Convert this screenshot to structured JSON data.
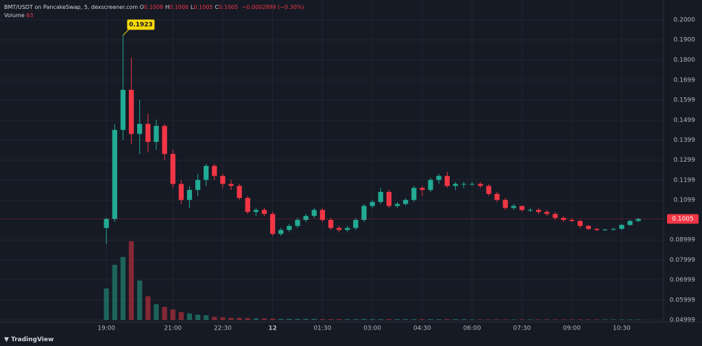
{
  "chart_data": {
    "type": "candlestick",
    "title": "BMT/USDT on PancakeSwap, 5, dexscreener.com",
    "ohlc": [
      {
        "label": "O",
        "value": 0.1008
      },
      {
        "label": "H",
        "value": 0.1006
      },
      {
        "label": "L",
        "value": 0.1005
      },
      {
        "label": "C",
        "value": 0.1005
      }
    ],
    "change": "−0.0002899 (−0.30%)",
    "volume_label": "Volume",
    "volume_value": 63,
    "brand": "TradingView",
    "x": [
      0,
      0.25,
      0.5,
      0.75,
      1,
      1.25,
      1.5,
      1.75,
      2,
      2.25,
      2.5,
      2.75,
      3,
      3.25,
      3.5,
      3.75,
      4,
      4.25,
      4.5,
      4.75,
      5,
      5.25,
      5.5,
      5.75,
      6,
      6.25,
      6.5,
      6.75,
      7,
      7.25,
      7.5,
      7.75,
      8,
      8.25,
      8.5,
      8.75,
      9,
      9.25,
      9.5,
      9.75,
      10,
      10.25,
      10.5,
      10.75,
      11,
      11.25,
      11.5,
      11.75,
      12,
      12.25,
      12.5,
      12.75,
      13,
      13.25,
      13.5,
      13.75,
      14,
      14.25,
      14.5,
      14.75,
      15,
      15.25,
      15.5,
      15.75,
      16
    ],
    "open": [
      0.096,
      0.1005,
      0.145,
      0.165,
      0.143,
      0.148,
      0.139,
      0.147,
      0.133,
      0.118,
      0.11,
      0.115,
      0.12,
      0.127,
      0.122,
      0.118,
      0.117,
      0.111,
      0.104,
      0.105,
      0.103,
      0.093,
      0.095,
      0.097,
      0.1,
      0.102,
      0.105,
      0.1,
      0.096,
      0.095,
      0.096,
      0.1,
      0.107,
      0.109,
      0.114,
      0.107,
      0.108,
      0.11,
      0.116,
      0.115,
      0.12,
      0.122,
      0.117,
      0.118,
      0.118,
      0.118,
      0.117,
      0.113,
      0.11,
      0.106,
      0.107,
      0.105,
      0.105,
      0.104,
      0.103,
      0.101,
      0.1,
      0.0995,
      0.097,
      0.0955,
      0.095,
      0.0952,
      0.0955,
      0.0975,
      0.0995
    ],
    "high": [
      0.101,
      0.148,
      0.1923,
      0.181,
      0.16,
      0.153,
      0.15,
      0.148,
      0.135,
      0.12,
      0.117,
      0.123,
      0.128,
      0.128,
      0.123,
      0.12,
      0.118,
      0.112,
      0.106,
      0.106,
      0.104,
      0.096,
      0.098,
      0.101,
      0.103,
      0.106,
      0.106,
      0.101,
      0.097,
      0.097,
      0.101,
      0.108,
      0.11,
      0.116,
      0.115,
      0.109,
      0.111,
      0.117,
      0.117,
      0.121,
      0.123,
      0.124,
      0.119,
      0.119,
      0.119,
      0.119,
      0.118,
      0.114,
      0.111,
      0.108,
      0.107,
      0.106,
      0.106,
      0.105,
      0.104,
      0.102,
      0.101,
      0.1,
      0.0975,
      0.096,
      0.0955,
      0.096,
      0.098,
      0.1,
      0.101
    ],
    "low": [
      0.088,
      0.099,
      0.14,
      0.138,
      0.133,
      0.134,
      0.135,
      0.13,
      0.116,
      0.108,
      0.106,
      0.112,
      0.117,
      0.12,
      0.116,
      0.115,
      0.11,
      0.103,
      0.102,
      0.102,
      0.092,
      0.092,
      0.094,
      0.096,
      0.099,
      0.101,
      0.099,
      0.095,
      0.094,
      0.094,
      0.095,
      0.099,
      0.106,
      0.108,
      0.106,
      0.106,
      0.107,
      0.109,
      0.112,
      0.114,
      0.118,
      0.116,
      0.115,
      0.116,
      0.117,
      0.116,
      0.112,
      0.109,
      0.105,
      0.105,
      0.104,
      0.104,
      0.103,
      0.102,
      0.1,
      0.099,
      0.099,
      0.096,
      0.095,
      0.0945,
      0.0945,
      0.0945,
      0.095,
      0.097,
      0.099
    ],
    "close": [
      0.1005,
      0.145,
      0.165,
      0.143,
      0.148,
      0.139,
      0.147,
      0.133,
      0.118,
      0.11,
      0.115,
      0.12,
      0.127,
      0.122,
      0.118,
      0.117,
      0.111,
      0.104,
      0.105,
      0.103,
      0.093,
      0.095,
      0.097,
      0.1,
      0.102,
      0.105,
      0.1,
      0.096,
      0.095,
      0.096,
      0.1,
      0.107,
      0.109,
      0.114,
      0.107,
      0.108,
      0.11,
      0.116,
      0.115,
      0.12,
      0.122,
      0.117,
      0.118,
      0.118,
      0.118,
      0.117,
      0.113,
      0.11,
      0.106,
      0.107,
      0.105,
      0.105,
      0.104,
      0.103,
      0.101,
      0.1,
      0.0995,
      0.097,
      0.0955,
      0.095,
      0.0952,
      0.0955,
      0.0975,
      0.0995,
      0.1005
    ],
    "volume": [
      120,
      210,
      240,
      300,
      150,
      90,
      60,
      50,
      40,
      30,
      25,
      20,
      18,
      12,
      10,
      8,
      8,
      7,
      6,
      6,
      5,
      4,
      4,
      4,
      4,
      4,
      3,
      3,
      3,
      3,
      3,
      4,
      3,
      3,
      3,
      3,
      3,
      3,
      3,
      3,
      3,
      3,
      3,
      3,
      2,
      2,
      2,
      2,
      2,
      2,
      2,
      2,
      2,
      2,
      2,
      2,
      2,
      2,
      2,
      2,
      2,
      2,
      2,
      2,
      2
    ],
    "colors": {
      "up": "#22ab94",
      "down": "#f23645"
    },
    "xlim": [
      -3.2,
      16.76
    ],
    "ylim": [
      0.05,
      0.2
    ],
    "volume_ylim": [
      0,
      300
    ],
    "xticks": [
      {
        "value": 0,
        "label": "19:00"
      },
      {
        "value": 2,
        "label": "21:00"
      },
      {
        "value": 3.5,
        "label": "22:30"
      },
      {
        "value": 5,
        "label": "12"
      },
      {
        "value": 6.5,
        "label": "01:30"
      },
      {
        "value": 8,
        "label": "03:00"
      },
      {
        "value": 9.5,
        "label": "04:30"
      },
      {
        "value": 11,
        "label": "06:00"
      },
      {
        "value": 12.5,
        "label": "07:30"
      },
      {
        "value": 14,
        "label": "09:00"
      },
      {
        "value": 15.5,
        "label": "10:30"
      }
    ],
    "yticks": [
      {
        "value": 0.2,
        "label": "0.2000"
      },
      {
        "value": 0.19,
        "label": "0.1900"
      },
      {
        "value": 0.18,
        "label": "0.1800"
      },
      0.1699,
      0.1599,
      0.1499,
      0.1399,
      0.1299,
      0.1199,
      0.1099,
      0.08999,
      0.07999,
      0.06999,
      0.05999,
      0.04999
    ],
    "last_price": 0.1005,
    "max_annotation": 0.1923,
    "grid": true
  }
}
